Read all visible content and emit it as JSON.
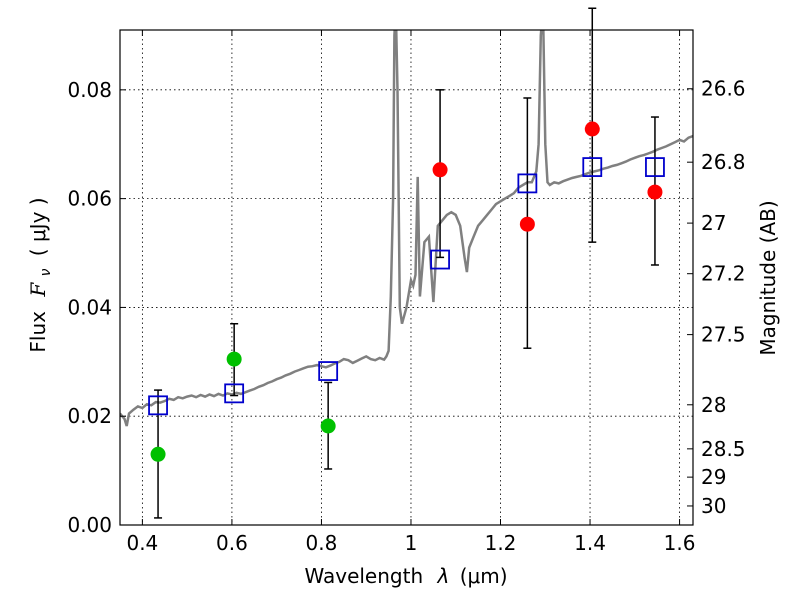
{
  "chart_data": {
    "type": "scatter",
    "xlabel_text": "Wavelength",
    "xlabel_symbol": "λ",
    "xlabel_unit": "(μm)",
    "ylabel_text": "Flux",
    "ylabel_symbol": "F",
    "ylabel_subscript": "ν",
    "ylabel_unit": "( μJy )",
    "y2label": "Magnitude (AB)",
    "xlim": [
      0.35,
      1.63
    ],
    "ylim": [
      0.0,
      0.091
    ],
    "grid": true,
    "x_ticks": [
      0.4,
      0.6,
      0.8,
      1.0,
      1.2,
      1.4,
      1.6
    ],
    "x_tick_labels": [
      "0.4",
      "0.6",
      "0.8",
      "1",
      "1.2",
      "1.4",
      "1.6"
    ],
    "y_ticks": [
      0.0,
      0.02,
      0.04,
      0.06,
      0.08
    ],
    "y_tick_labels": [
      "0.00",
      "0.02",
      "0.04",
      "0.06",
      "0.08"
    ],
    "y2_ticks": [
      {
        "label": "26.6",
        "flux": 0.0802
      },
      {
        "label": "26.8",
        "flux": 0.0667
      },
      {
        "label": "27",
        "flux": 0.0555
      },
      {
        "label": "27.2",
        "flux": 0.0462
      },
      {
        "label": "27.5",
        "flux": 0.035
      },
      {
        "label": "28",
        "flux": 0.0221
      },
      {
        "label": "28.5",
        "flux": 0.014
      },
      {
        "label": "29",
        "flux": 0.0088
      },
      {
        "label": "30",
        "flux": 0.0035
      }
    ],
    "spectrum": {
      "color": "#808080",
      "points": [
        [
          0.35,
          0.0205
        ],
        [
          0.36,
          0.0195
        ],
        [
          0.365,
          0.0182
        ],
        [
          0.37,
          0.0205
        ],
        [
          0.38,
          0.0212
        ],
        [
          0.39,
          0.0218
        ],
        [
          0.4,
          0.0215
        ],
        [
          0.41,
          0.0222
        ],
        [
          0.42,
          0.022
        ],
        [
          0.43,
          0.0226
        ],
        [
          0.44,
          0.0225
        ],
        [
          0.45,
          0.0228
        ],
        [
          0.46,
          0.0232
        ],
        [
          0.47,
          0.023
        ],
        [
          0.48,
          0.0235
        ],
        [
          0.49,
          0.0233
        ],
        [
          0.5,
          0.0236
        ],
        [
          0.51,
          0.0238
        ],
        [
          0.52,
          0.0235
        ],
        [
          0.53,
          0.0239
        ],
        [
          0.54,
          0.0236
        ],
        [
          0.55,
          0.024
        ],
        [
          0.56,
          0.0237
        ],
        [
          0.57,
          0.0241
        ],
        [
          0.58,
          0.0238
        ],
        [
          0.59,
          0.0242
        ],
        [
          0.6,
          0.024
        ],
        [
          0.61,
          0.0243
        ],
        [
          0.62,
          0.0241
        ],
        [
          0.63,
          0.0244
        ],
        [
          0.64,
          0.0247
        ],
        [
          0.65,
          0.025
        ],
        [
          0.66,
          0.0254
        ],
        [
          0.67,
          0.0257
        ],
        [
          0.68,
          0.0261
        ],
        [
          0.69,
          0.0264
        ],
        [
          0.7,
          0.0268
        ],
        [
          0.71,
          0.0271
        ],
        [
          0.72,
          0.0275
        ],
        [
          0.73,
          0.0278
        ],
        [
          0.74,
          0.0282
        ],
        [
          0.75,
          0.0285
        ],
        [
          0.76,
          0.0288
        ],
        [
          0.77,
          0.0291
        ],
        [
          0.78,
          0.0292
        ],
        [
          0.79,
          0.0294
        ],
        [
          0.8,
          0.0292
        ],
        [
          0.81,
          0.029
        ],
        [
          0.82,
          0.0293
        ],
        [
          0.83,
          0.0297
        ],
        [
          0.84,
          0.03
        ],
        [
          0.85,
          0.0305
        ],
        [
          0.86,
          0.0303
        ],
        [
          0.87,
          0.0298
        ],
        [
          0.88,
          0.0302
        ],
        [
          0.89,
          0.0306
        ],
        [
          0.9,
          0.031
        ],
        [
          0.91,
          0.0305
        ],
        [
          0.92,
          0.0303
        ],
        [
          0.93,
          0.0307
        ],
        [
          0.94,
          0.0304
        ],
        [
          0.945,
          0.031
        ],
        [
          0.95,
          0.032
        ],
        [
          0.955,
          0.042
        ],
        [
          0.96,
          0.06
        ],
        [
          0.963,
          0.09
        ],
        [
          0.966,
          0.095
        ],
        [
          0.97,
          0.08
        ],
        [
          0.975,
          0.04
        ],
        [
          0.98,
          0.037
        ],
        [
          0.99,
          0.04
        ],
        [
          1.0,
          0.045
        ],
        [
          1.005,
          0.044
        ],
        [
          1.01,
          0.046
        ],
        [
          1.015,
          0.064
        ],
        [
          1.02,
          0.042
        ],
        [
          1.03,
          0.052
        ],
        [
          1.04,
          0.053
        ],
        [
          1.05,
          0.041
        ],
        [
          1.06,
          0.055
        ],
        [
          1.07,
          0.056
        ],
        [
          1.08,
          0.057
        ],
        [
          1.09,
          0.0575
        ],
        [
          1.1,
          0.057
        ],
        [
          1.11,
          0.055
        ],
        [
          1.12,
          0.049
        ],
        [
          1.125,
          0.0465
        ],
        [
          1.13,
          0.051
        ],
        [
          1.14,
          0.053
        ],
        [
          1.15,
          0.055
        ],
        [
          1.16,
          0.056
        ],
        [
          1.17,
          0.057
        ],
        [
          1.18,
          0.058
        ],
        [
          1.19,
          0.059
        ],
        [
          1.2,
          0.0595
        ],
        [
          1.21,
          0.06
        ],
        [
          1.22,
          0.0605
        ],
        [
          1.23,
          0.061
        ],
        [
          1.24,
          0.062
        ],
        [
          1.25,
          0.0625
        ],
        [
          1.26,
          0.063
        ],
        [
          1.27,
          0.063
        ],
        [
          1.28,
          0.065
        ],
        [
          1.285,
          0.07
        ],
        [
          1.29,
          0.09
        ],
        [
          1.295,
          0.095
        ],
        [
          1.3,
          0.07
        ],
        [
          1.305,
          0.063
        ],
        [
          1.31,
          0.0625
        ],
        [
          1.32,
          0.063
        ],
        [
          1.33,
          0.0628
        ],
        [
          1.34,
          0.0632
        ],
        [
          1.35,
          0.0635
        ],
        [
          1.36,
          0.0638
        ],
        [
          1.37,
          0.064
        ],
        [
          1.38,
          0.0642
        ],
        [
          1.39,
          0.0645
        ],
        [
          1.4,
          0.0648
        ],
        [
          1.41,
          0.065
        ],
        [
          1.42,
          0.0652
        ],
        [
          1.43,
          0.0655
        ],
        [
          1.44,
          0.0657
        ],
        [
          1.45,
          0.066
        ],
        [
          1.46,
          0.0662
        ],
        [
          1.47,
          0.0665
        ],
        [
          1.48,
          0.0668
        ],
        [
          1.49,
          0.0672
        ],
        [
          1.5,
          0.0675
        ],
        [
          1.51,
          0.0678
        ],
        [
          1.52,
          0.068
        ],
        [
          1.53,
          0.0683
        ],
        [
          1.54,
          0.0686
        ],
        [
          1.55,
          0.069
        ],
        [
          1.56,
          0.0693
        ],
        [
          1.57,
          0.0696
        ],
        [
          1.58,
          0.07
        ],
        [
          1.59,
          0.0704
        ],
        [
          1.6,
          0.0708
        ],
        [
          1.61,
          0.0705
        ],
        [
          1.62,
          0.0712
        ],
        [
          1.63,
          0.0715
        ]
      ]
    },
    "observed_optical": {
      "color": "#00c000",
      "points": [
        {
          "x": 0.435,
          "y": 0.013,
          "err_lo": 0.0013,
          "err_hi": 0.0248
        },
        {
          "x": 0.605,
          "y": 0.0305,
          "err_lo": 0.0238,
          "err_hi": 0.037
        },
        {
          "x": 0.815,
          "y": 0.0182,
          "err_lo": 0.0103,
          "err_hi": 0.0262
        }
      ]
    },
    "observed_nir": {
      "color": "#ff0000",
      "points": [
        {
          "x": 1.065,
          "y": 0.0653,
          "err_lo": 0.0492,
          "err_hi": 0.08
        },
        {
          "x": 1.26,
          "y": 0.0553,
          "err_lo": 0.0325,
          "err_hi": 0.0785
        },
        {
          "x": 1.405,
          "y": 0.0728,
          "err_lo": 0.052,
          "err_hi": 0.095
        },
        {
          "x": 1.545,
          "y": 0.0612,
          "err_lo": 0.0478,
          "err_hi": 0.075
        }
      ]
    },
    "model_fluxes": {
      "color": "#0000cc",
      "points": [
        {
          "x": 0.435,
          "y": 0.022
        },
        {
          "x": 0.605,
          "y": 0.0242
        },
        {
          "x": 0.815,
          "y": 0.0283
        },
        {
          "x": 1.065,
          "y": 0.0488
        },
        {
          "x": 1.26,
          "y": 0.0628
        },
        {
          "x": 1.405,
          "y": 0.0658
        },
        {
          "x": 1.545,
          "y": 0.0658
        }
      ]
    }
  }
}
